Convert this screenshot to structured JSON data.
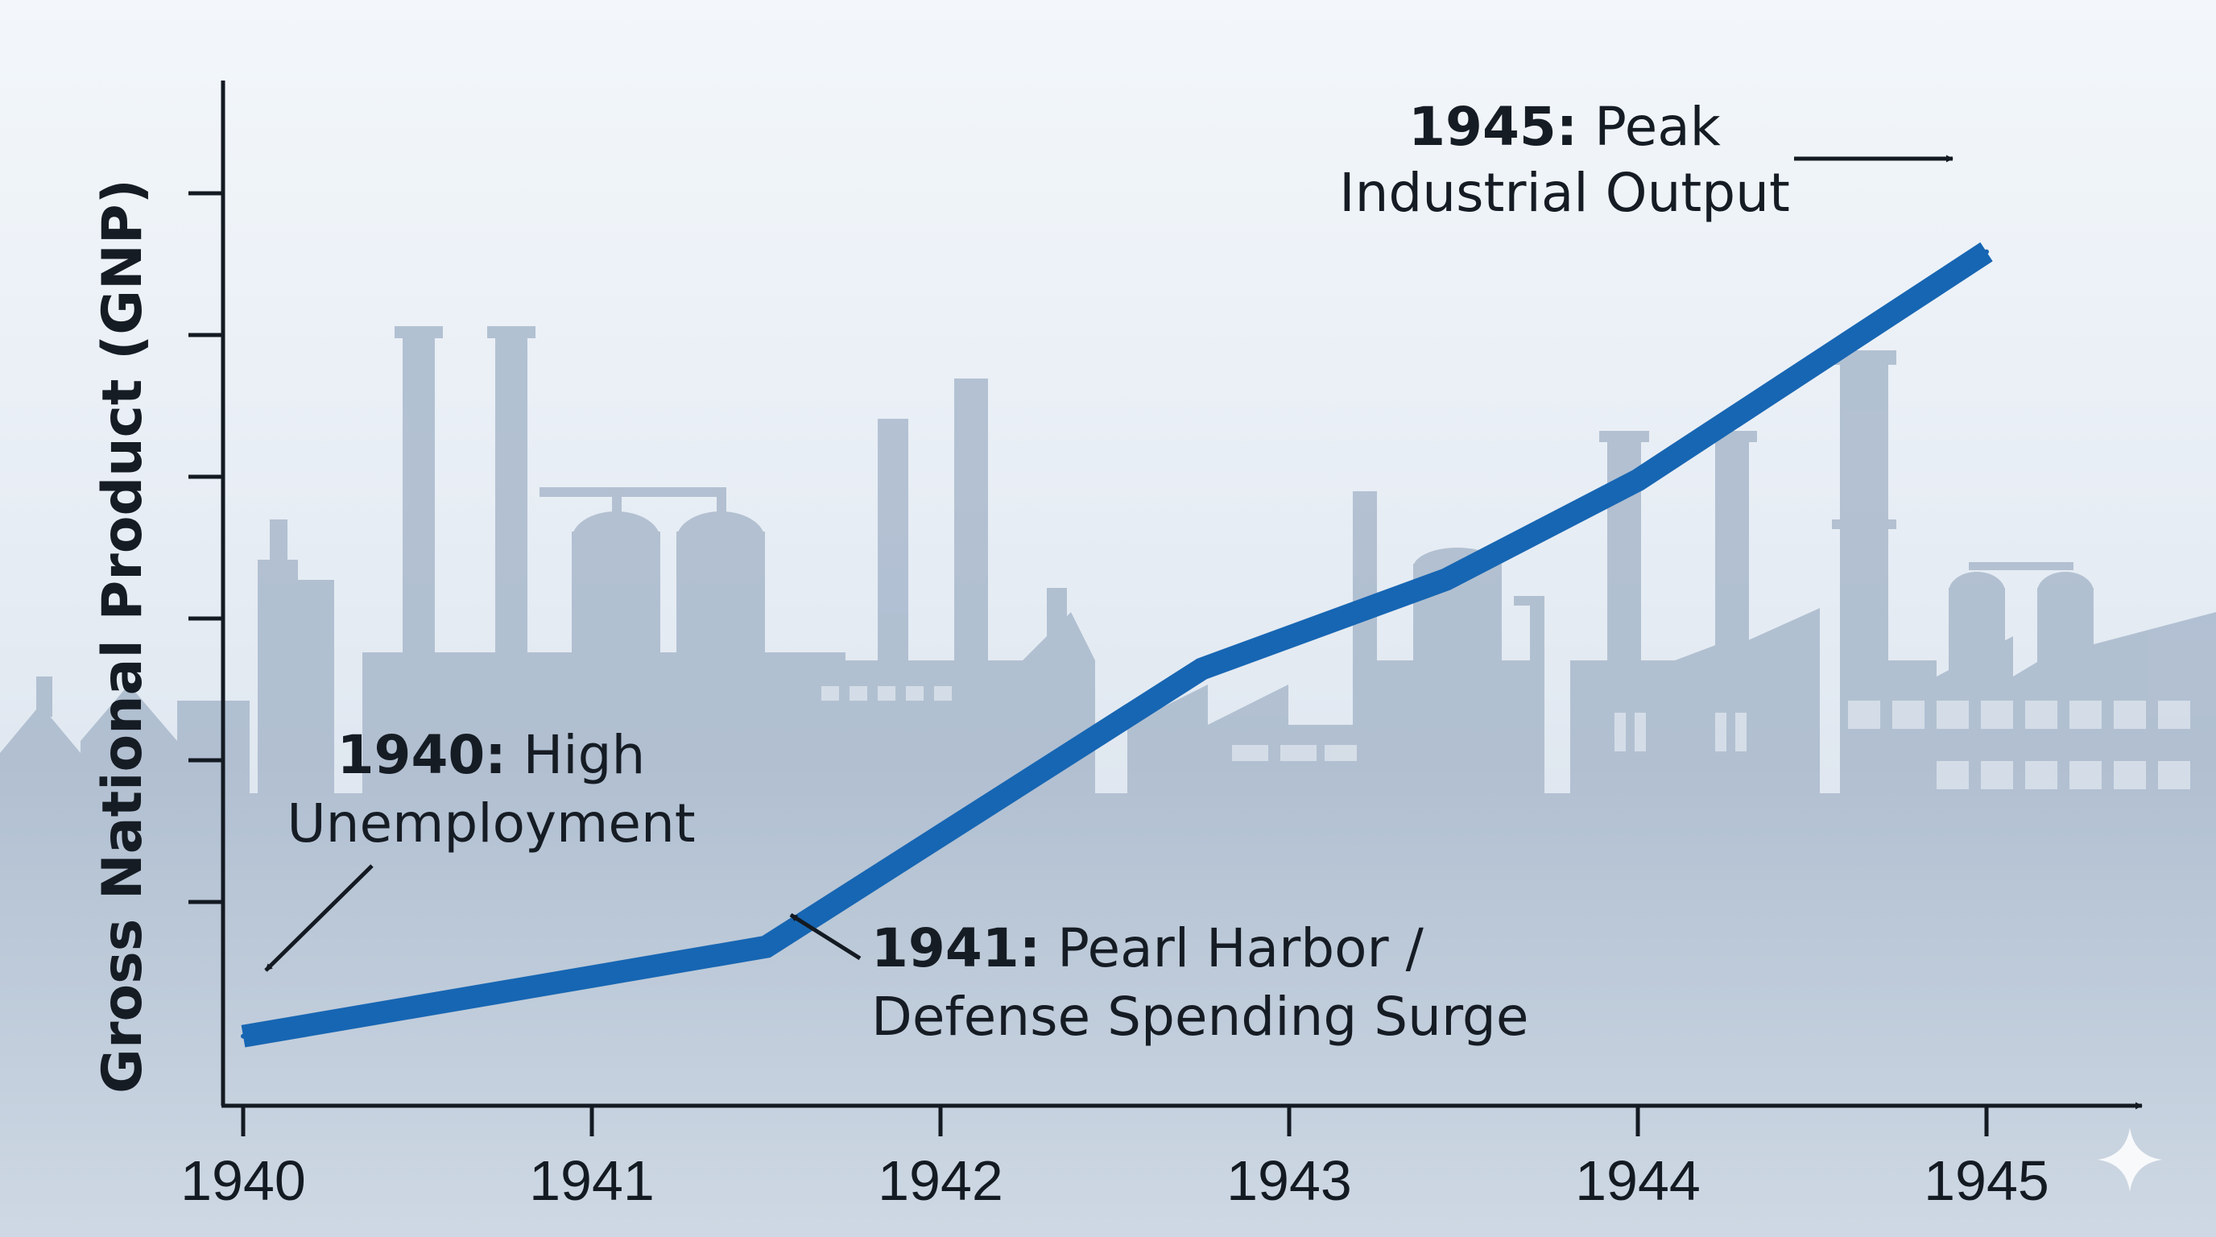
{
  "colors": {
    "background_top": "#f3f7fb",
    "background_bottom": "#cfd9e5",
    "factory_silhouette": "#a9b9cc",
    "line": "#1766b3",
    "axis": "#141a22",
    "text": "#161c24"
  },
  "decorations": {
    "background_icon": "factory-skyline-icon",
    "corner_icon": "sparkle-icon"
  },
  "chart_data": {
    "type": "line",
    "title": "",
    "xlabel": "",
    "ylabel": "Gross National Product (GNP)",
    "xlim": [
      1940,
      1945.5
    ],
    "ylim": [
      0,
      10
    ],
    "x_ticks": [
      "1940",
      "1941",
      "1942",
      "1943",
      "1944",
      "1945"
    ],
    "y_ticks_count": 7,
    "grid": false,
    "series": [
      {
        "name": "GNP",
        "points": [
          {
            "x": 1940.0,
            "y": 0.7
          },
          {
            "x": 1941.5,
            "y": 1.6
          },
          {
            "x": 1942.75,
            "y": 4.4
          },
          {
            "x": 1943.45,
            "y": 5.3
          },
          {
            "x": 1944.0,
            "y": 6.3
          },
          {
            "x": 1945.0,
            "y": 8.6
          }
        ]
      }
    ],
    "annotations": [
      {
        "id": "a1940",
        "bold": "1940:",
        "line1_rest": " High",
        "line2": "Unemployment",
        "target_x": 1940.0,
        "target_y": 0.7
      },
      {
        "id": "a1941",
        "bold": "1941:",
        "line1_rest": " Pearl Harbor /",
        "line2": "Defense Spending Surge",
        "target_x": 1941.5,
        "target_y": 1.6
      },
      {
        "id": "a1945",
        "bold": "1945:",
        "line1_rest": " Peak",
        "line2": "Industrial Output",
        "target_x": 1945.0,
        "target_y": 8.6
      }
    ]
  }
}
